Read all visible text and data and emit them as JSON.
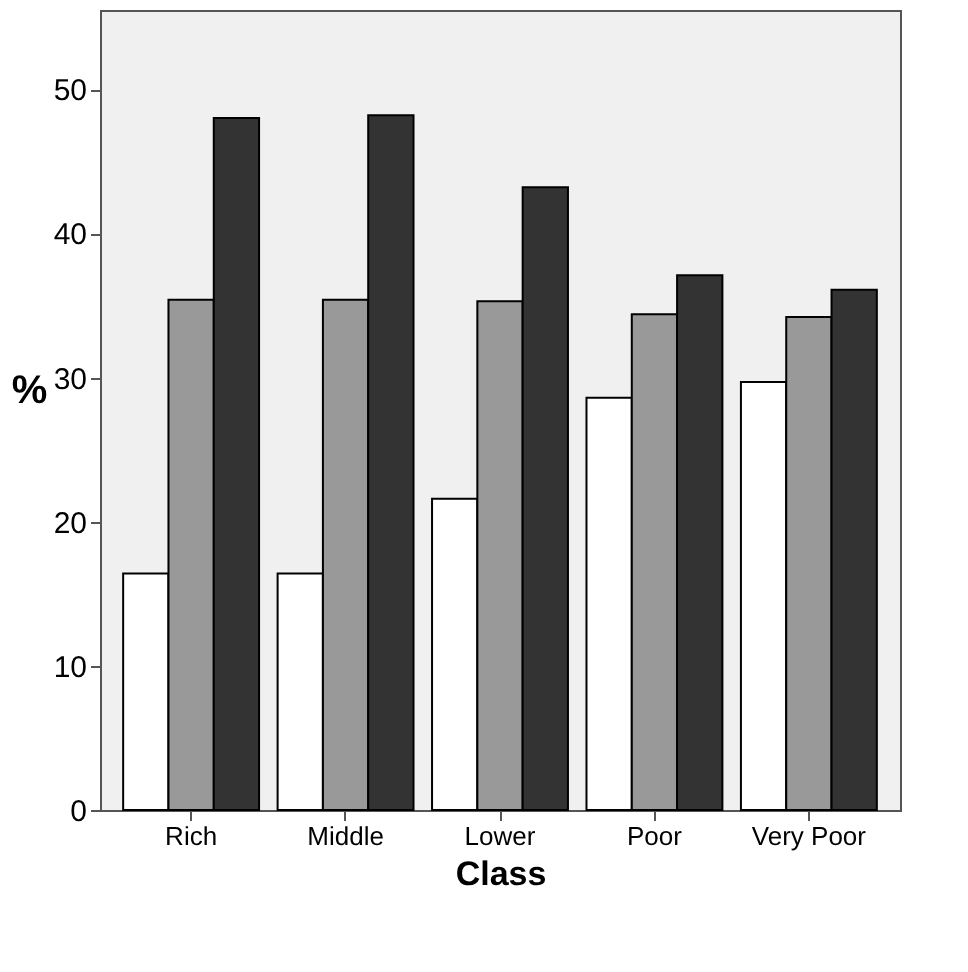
{
  "chart_data": {
    "type": "bar",
    "xlabel": "Class",
    "ylabel": "%",
    "categories": [
      "Rich",
      "Middle",
      "Lower",
      "Poor",
      "Very Poor"
    ],
    "series": [
      {
        "color": "#ffffff",
        "values": [
          16.4,
          16.4,
          21.6,
          28.6,
          29.7
        ]
      },
      {
        "color": "#999999",
        "values": [
          35.4,
          35.4,
          35.3,
          34.4,
          34.2
        ]
      },
      {
        "color": "#333333",
        "values": [
          48.0,
          48.2,
          43.2,
          37.1,
          36.1
        ]
      }
    ],
    "ylim": [
      0,
      55.5
    ],
    "yticks": [
      0,
      10,
      20,
      30,
      40,
      50
    ],
    "grid": false
  }
}
